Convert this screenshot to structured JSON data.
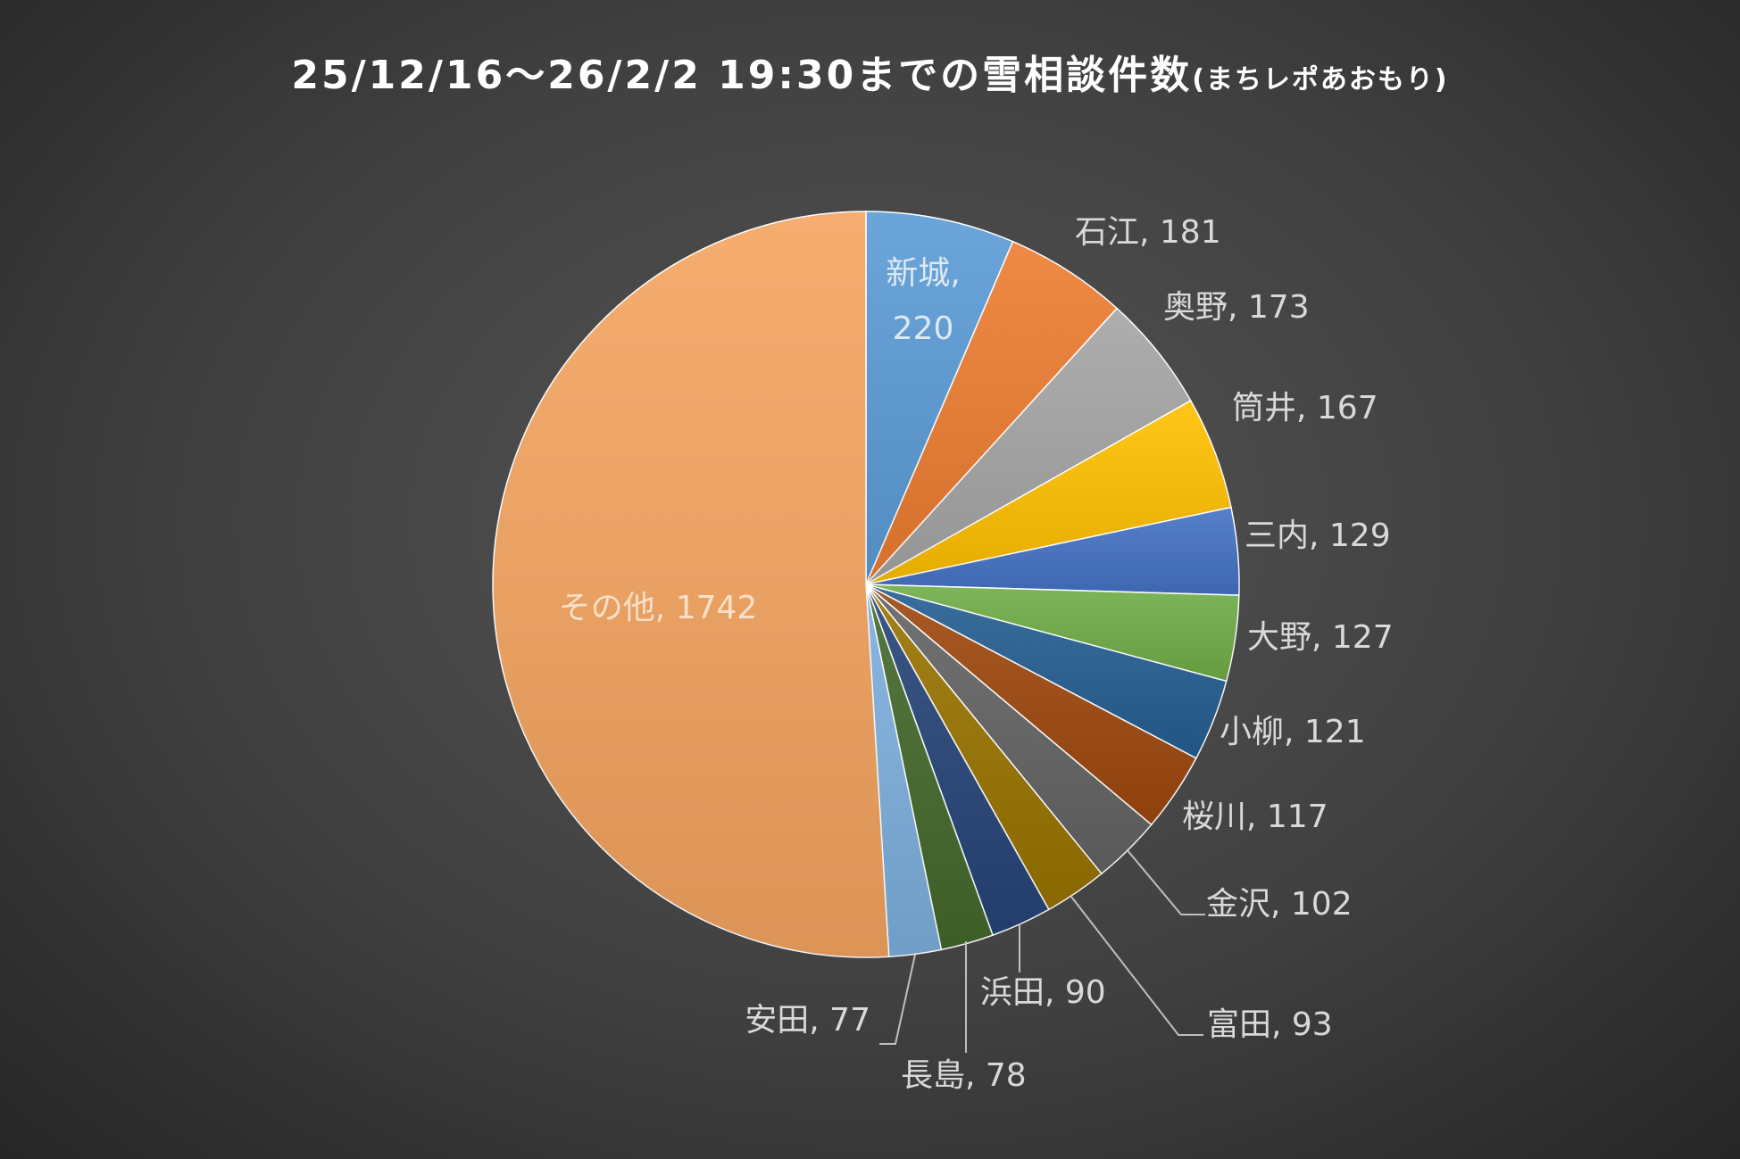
{
  "chart_data": {
    "type": "pie",
    "title": "25/12/16～26/2/2 19:30までの雪相談件数",
    "subtitle": "(まちレポあおもり)",
    "slices": [
      {
        "label": "新城",
        "value": 220,
        "color": "#5b9bd5",
        "label_color": "#dce8f5",
        "label_inside": true
      },
      {
        "label": "石江",
        "value": 181,
        "color": "#ed7d31",
        "label_color": "#d9d9d9"
      },
      {
        "label": "奥野",
        "value": 173,
        "color": "#a5a5a5",
        "label_color": "#d9d9d9"
      },
      {
        "label": "筒井",
        "value": 167,
        "color": "#ffc000",
        "label_color": "#d9d9d9"
      },
      {
        "label": "三内",
        "value": 129,
        "color": "#4472c4",
        "label_color": "#d9d9d9"
      },
      {
        "label": "大野",
        "value": 127,
        "color": "#70ad47",
        "label_color": "#d9d9d9"
      },
      {
        "label": "小柳",
        "value": 121,
        "color": "#255e91",
        "label_color": "#d9d9d9"
      },
      {
        "label": "桜川",
        "value": 117,
        "color": "#9e480e",
        "label_color": "#d9d9d9"
      },
      {
        "label": "金沢",
        "value": 102,
        "color": "#636363",
        "label_color": "#d9d9d9"
      },
      {
        "label": "富田",
        "value": 93,
        "color": "#997300",
        "label_color": "#d9d9d9"
      },
      {
        "label": "浜田",
        "value": 90,
        "color": "#264478",
        "label_color": "#d9d9d9"
      },
      {
        "label": "長島",
        "value": 78,
        "color": "#43682b",
        "label_color": "#d9d9d9"
      },
      {
        "label": "安田",
        "value": 77,
        "color": "#7cafdd",
        "label_color": "#d9d9d9"
      },
      {
        "label": "その他",
        "value": 1742,
        "color": "#f4a460",
        "label_color": "#fbe0c8",
        "label_inside": true
      }
    ],
    "legend": "none"
  }
}
